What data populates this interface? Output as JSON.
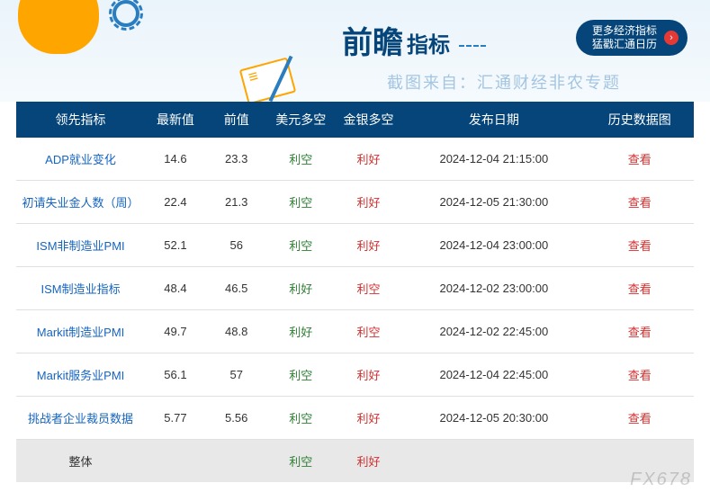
{
  "banner": {
    "title_main": "前瞻",
    "title_sub": "指标",
    "caption": "截图来自：汇通财经非农专题",
    "pill_line1": "更多经济指标",
    "pill_line2": "猛戳汇通日历",
    "pill_arrow_glyph": "›"
  },
  "table": {
    "columns": [
      {
        "key": "indicator",
        "label": "领先指标",
        "width": "19%"
      },
      {
        "key": "latest",
        "label": "最新值",
        "width": "9%"
      },
      {
        "key": "prev",
        "label": "前值",
        "width": "9%"
      },
      {
        "key": "usd",
        "label": "美元多空",
        "width": "10%"
      },
      {
        "key": "gold",
        "label": "金银多空",
        "width": "10%"
      },
      {
        "key": "date",
        "label": "发布日期",
        "width": "27%"
      },
      {
        "key": "hist",
        "label": "历史数据图",
        "width": "16%"
      }
    ],
    "rows": [
      {
        "indicator": "ADP就业变化",
        "latest": "14.6",
        "prev": "23.3",
        "usd": "利空",
        "gold": "利好",
        "date": "2024-12-04 21:15:00",
        "hist": "查看",
        "usd_pos": false,
        "gold_pos": true
      },
      {
        "indicator": "初请失业金人数（周）",
        "latest": "22.4",
        "prev": "21.3",
        "usd": "利空",
        "gold": "利好",
        "date": "2024-12-05 21:30:00",
        "hist": "查看",
        "usd_pos": false,
        "gold_pos": true
      },
      {
        "indicator": "ISM非制造业PMI",
        "latest": "52.1",
        "prev": "56",
        "usd": "利空",
        "gold": "利好",
        "date": "2024-12-04 23:00:00",
        "hist": "查看",
        "usd_pos": false,
        "gold_pos": true
      },
      {
        "indicator": "ISM制造业指标",
        "latest": "48.4",
        "prev": "46.5",
        "usd": "利好",
        "gold": "利空",
        "date": "2024-12-02 23:00:00",
        "hist": "查看",
        "usd_pos": true,
        "gold_pos": false
      },
      {
        "indicator": "Markit制造业PMI",
        "latest": "49.7",
        "prev": "48.8",
        "usd": "利好",
        "gold": "利空",
        "date": "2024-12-02 22:45:00",
        "hist": "查看",
        "usd_pos": true,
        "gold_pos": false
      },
      {
        "indicator": "Markit服务业PMI",
        "latest": "56.1",
        "prev": "57",
        "usd": "利空",
        "gold": "利好",
        "date": "2024-12-04 22:45:00",
        "hist": "查看",
        "usd_pos": false,
        "gold_pos": true
      },
      {
        "indicator": "挑战者企业裁员数据",
        "latest": "5.77",
        "prev": "5.56",
        "usd": "利空",
        "gold": "利好",
        "date": "2024-12-05 20:30:00",
        "hist": "查看",
        "usd_pos": false,
        "gold_pos": true
      }
    ],
    "summary": {
      "indicator": "整体",
      "latest": "",
      "prev": "",
      "usd": "利空",
      "gold": "利好",
      "date": "",
      "hist": "",
      "usd_pos": false,
      "gold_pos": true
    }
  },
  "colors": {
    "header_bg": "#05457a",
    "header_fg": "#ffffff",
    "link": "#1565c0",
    "pos_green": "#2e7d32",
    "neg_red": "#d32f2f",
    "view": "#d32f2f",
    "row_border": "#e0e0e0",
    "summary_bg": "#e8e8e8",
    "banner_grad_top": "#eaf4fb",
    "banner_grad_bot": "#f5fafd",
    "accent_orange": "#ffa500",
    "accent_blue": "#2a7dbf",
    "pill_arrow_bg": "#e53935"
  },
  "watermark": "FX678"
}
